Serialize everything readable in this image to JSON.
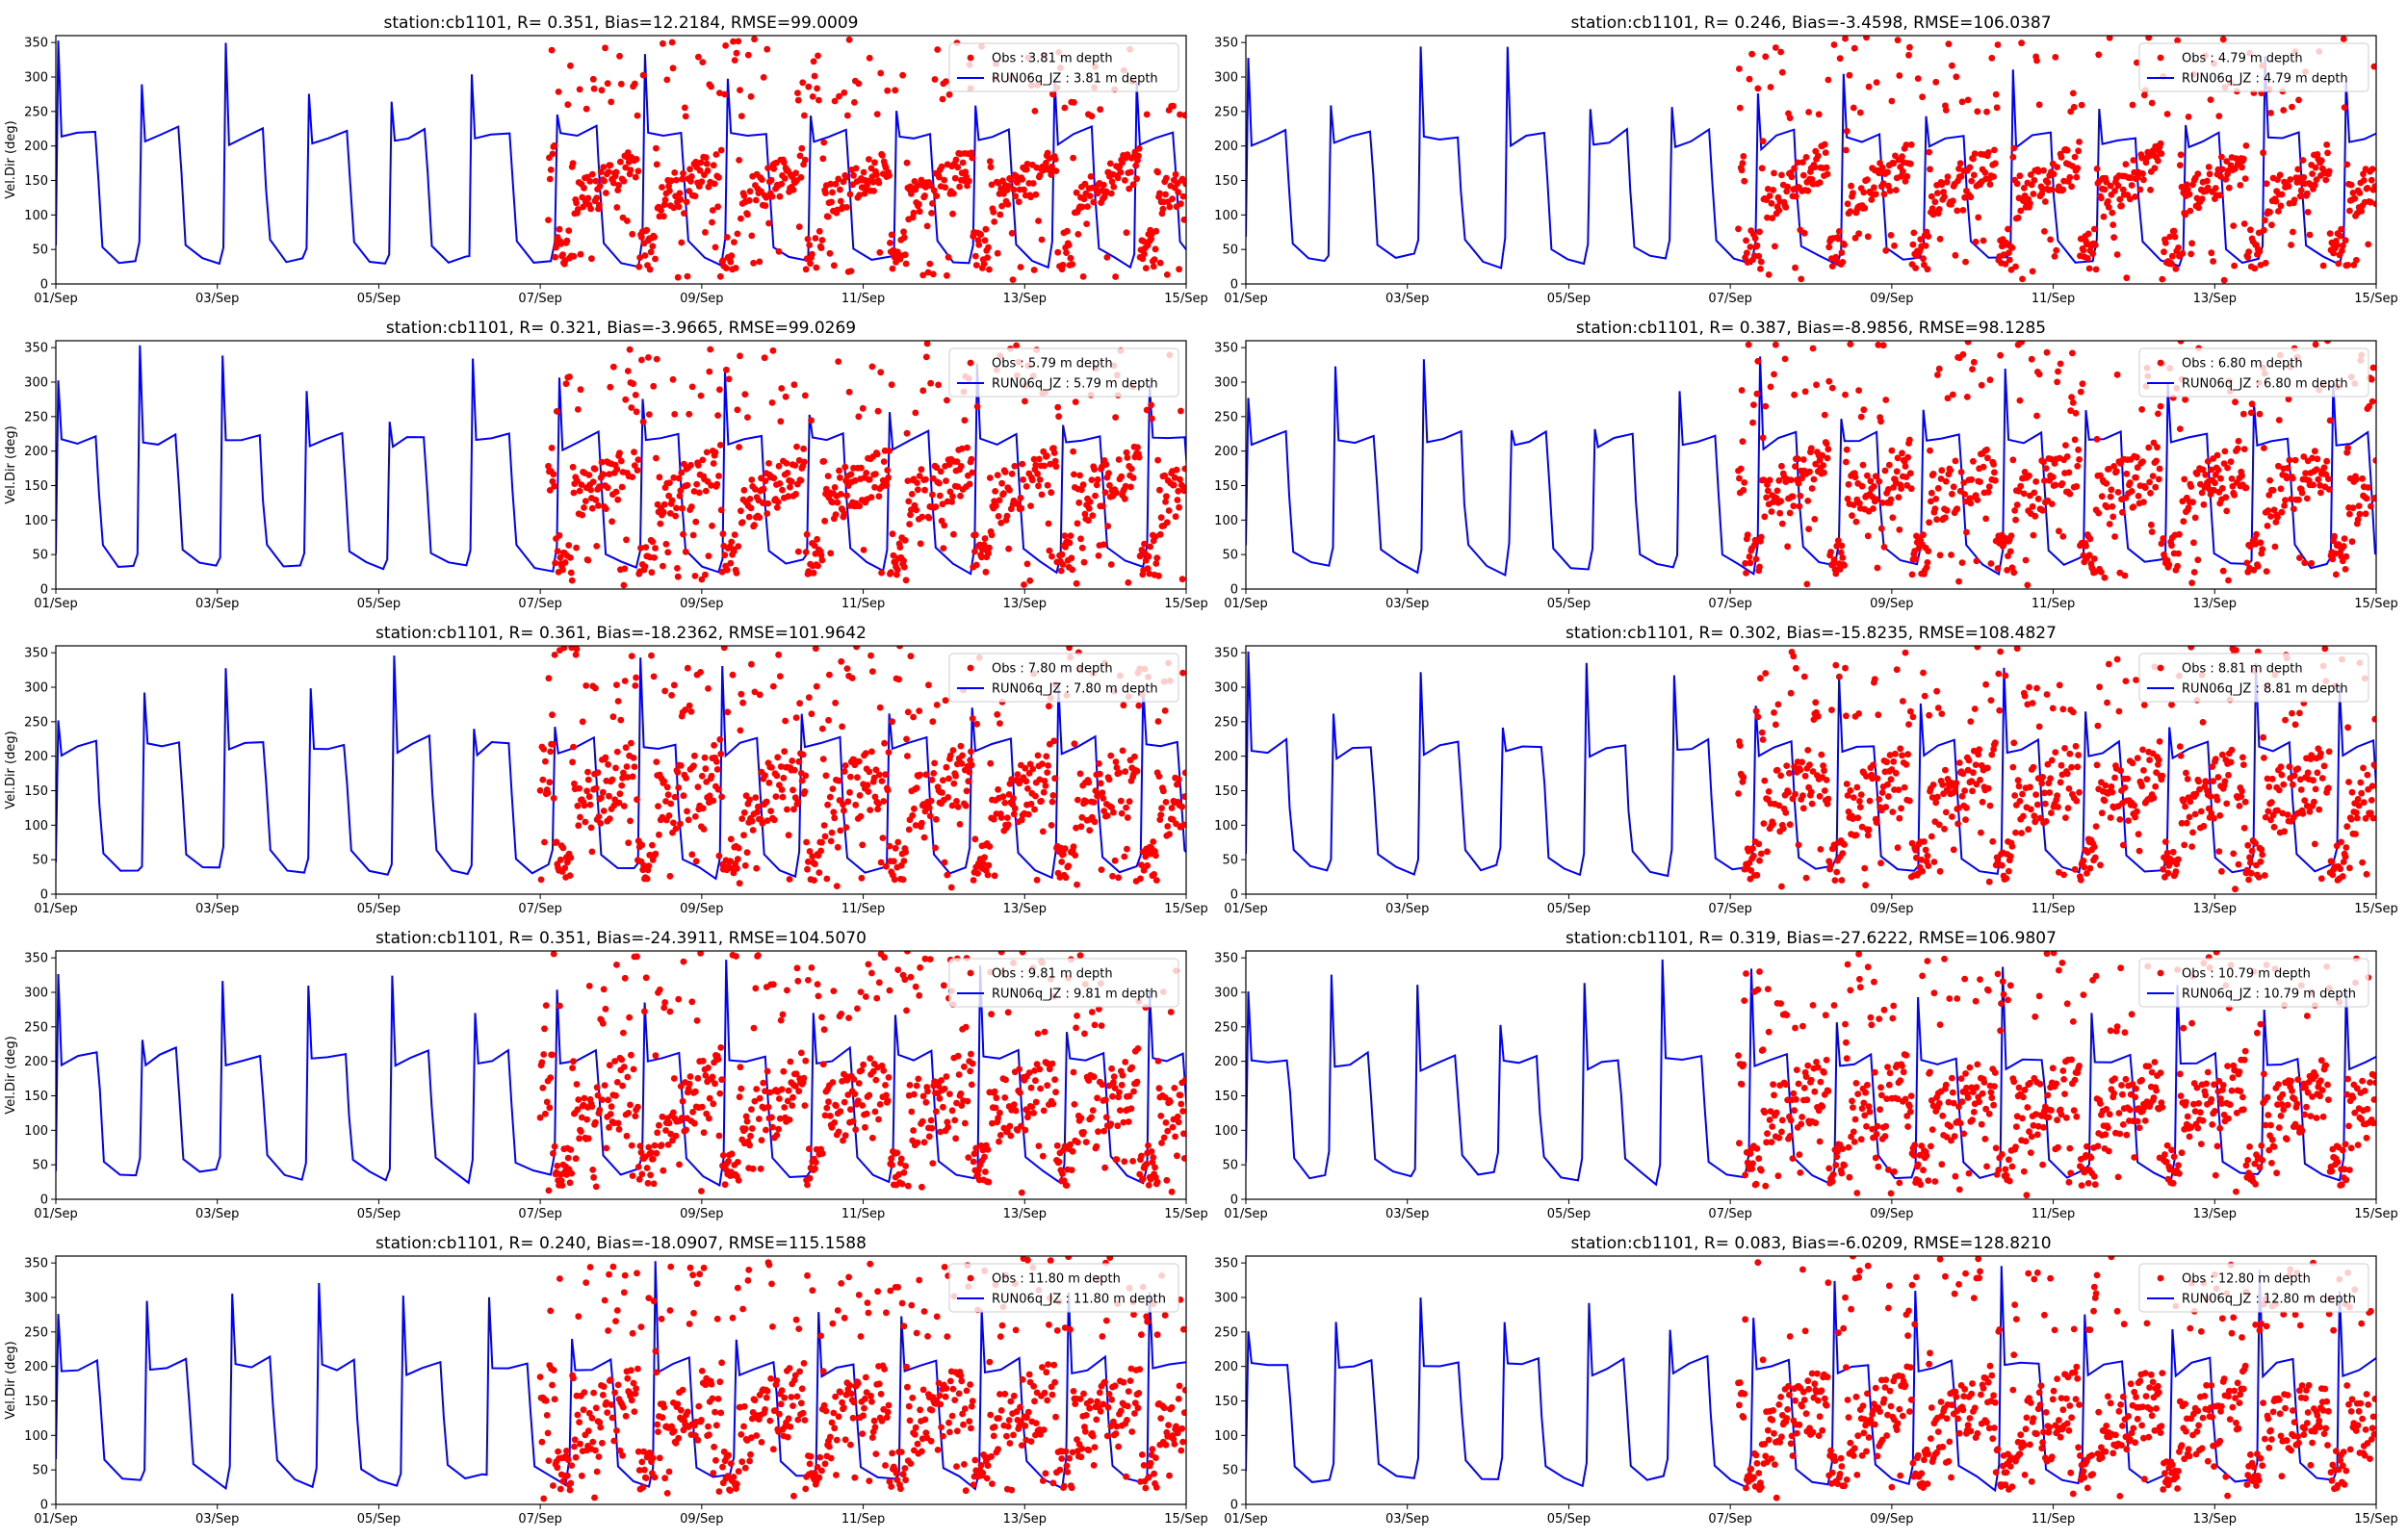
{
  "figure": {
    "obs_color": "#ff0000",
    "model_color": "#0000ff",
    "grid": false,
    "legend_placement": "upper-right"
  },
  "chart_data": [
    {
      "type": "line",
      "title": "station:cb1101, R= 0.351, Bias=12.2184, RMSE=99.0009",
      "ylabel": "Vel.Dir (deg)",
      "xlabel": "",
      "ylim": [
        0,
        360
      ],
      "yticks": [
        0,
        50,
        100,
        150,
        200,
        250,
        300,
        350
      ],
      "xlim": [
        "2021-09-01",
        "2021-09-15"
      ],
      "xticks": [
        "01/Sep",
        "03/Sep",
        "05/Sep",
        "07/Sep",
        "09/Sep",
        "11/Sep",
        "13/Sep",
        "15/Sep"
      ],
      "obs_start_day": 6.1,
      "obs_band": [
        135,
        160
      ],
      "model_plateau": 215,
      "series": [
        {
          "name": "Obs : 3.81 m depth",
          "kind": "scatter",
          "color": "#ff0000"
        },
        {
          "name": "RUN06q_JZ : 3.81 m depth",
          "kind": "line",
          "color": "#0000ff"
        }
      ]
    },
    {
      "type": "line",
      "title": "station:cb1101, R= 0.246, Bias=-3.4598, RMSE=106.0387",
      "ylabel": "",
      "xlabel": "",
      "ylim": [
        0,
        360
      ],
      "yticks": [
        0,
        50,
        100,
        150,
        200,
        250,
        300,
        350
      ],
      "xlim": [
        "2021-09-01",
        "2021-09-15"
      ],
      "xticks": [
        "01/Sep",
        "03/Sep",
        "05/Sep",
        "07/Sep",
        "09/Sep",
        "11/Sep",
        "13/Sep",
        "15/Sep"
      ],
      "obs_start_day": 6.1,
      "obs_band": [
        135,
        165
      ],
      "model_plateau": 210,
      "series": [
        {
          "name": "Obs : 4.79 m depth",
          "kind": "scatter",
          "color": "#ff0000"
        },
        {
          "name": "RUN06q_JZ : 4.79 m depth",
          "kind": "line",
          "color": "#0000ff"
        }
      ]
    },
    {
      "type": "line",
      "title": "station:cb1101, R= 0.321, Bias=-3.9665, RMSE=99.0269",
      "ylabel": "Vel.Dir (deg)",
      "xlabel": "",
      "ylim": [
        0,
        360
      ],
      "yticks": [
        0,
        50,
        100,
        150,
        200,
        250,
        300,
        350
      ],
      "xlim": [
        "2021-09-01",
        "2021-09-15"
      ],
      "xticks": [
        "01/Sep",
        "03/Sep",
        "05/Sep",
        "07/Sep",
        "09/Sep",
        "11/Sep",
        "13/Sep",
        "15/Sep"
      ],
      "obs_start_day": 6.1,
      "obs_band": [
        130,
        175
      ],
      "model_plateau": 215,
      "series": [
        {
          "name": "Obs : 5.79 m depth",
          "kind": "scatter",
          "color": "#ff0000"
        },
        {
          "name": "RUN06q_JZ : 5.79 m depth",
          "kind": "line",
          "color": "#0000ff"
        }
      ]
    },
    {
      "type": "line",
      "title": "station:cb1101, R= 0.387, Bias=-8.9856, RMSE=98.1285",
      "ylabel": "",
      "xlabel": "",
      "ylim": [
        0,
        360
      ],
      "yticks": [
        0,
        50,
        100,
        150,
        200,
        250,
        300,
        350
      ],
      "xlim": [
        "2021-09-01",
        "2021-09-15"
      ],
      "xticks": [
        "01/Sep",
        "03/Sep",
        "05/Sep",
        "07/Sep",
        "09/Sep",
        "11/Sep",
        "13/Sep",
        "15/Sep"
      ],
      "obs_start_day": 6.1,
      "obs_band": [
        130,
        180
      ],
      "model_plateau": 215,
      "series": [
        {
          "name": "Obs : 6.80 m depth",
          "kind": "scatter",
          "color": "#ff0000"
        },
        {
          "name": "RUN06q_JZ : 6.80 m depth",
          "kind": "line",
          "color": "#0000ff"
        }
      ]
    },
    {
      "type": "line",
      "title": "station:cb1101, R= 0.361, Bias=-18.2362, RMSE=101.9642",
      "ylabel": "Vel.Dir (deg)",
      "xlabel": "",
      "ylim": [
        0,
        360
      ],
      "yticks": [
        0,
        50,
        100,
        150,
        200,
        250,
        300,
        350
      ],
      "xlim": [
        "2021-09-01",
        "2021-09-15"
      ],
      "xticks": [
        "01/Sep",
        "03/Sep",
        "05/Sep",
        "07/Sep",
        "09/Sep",
        "11/Sep",
        "13/Sep",
        "15/Sep"
      ],
      "obs_start_day": 6.0,
      "obs_band": [
        120,
        185
      ],
      "model_plateau": 215,
      "series": [
        {
          "name": "Obs : 7.80 m depth",
          "kind": "scatter",
          "color": "#ff0000"
        },
        {
          "name": "RUN06q_JZ : 7.80 m depth",
          "kind": "line",
          "color": "#0000ff"
        }
      ]
    },
    {
      "type": "line",
      "title": "station:cb1101, R= 0.302, Bias=-15.8235, RMSE=108.4827",
      "ylabel": "",
      "xlabel": "",
      "ylim": [
        0,
        360
      ],
      "yticks": [
        0,
        50,
        100,
        150,
        200,
        250,
        300,
        350
      ],
      "xlim": [
        "2021-09-01",
        "2021-09-15"
      ],
      "xticks": [
        "01/Sep",
        "03/Sep",
        "05/Sep",
        "07/Sep",
        "09/Sep",
        "11/Sep",
        "13/Sep",
        "15/Sep"
      ],
      "obs_start_day": 6.1,
      "obs_band": [
        120,
        185
      ],
      "model_plateau": 210,
      "series": [
        {
          "name": "Obs : 8.81 m depth",
          "kind": "scatter",
          "color": "#ff0000"
        },
        {
          "name": "RUN06q_JZ : 8.81 m depth",
          "kind": "line",
          "color": "#0000ff"
        }
      ]
    },
    {
      "type": "line",
      "title": "station:cb1101, R= 0.351, Bias=-24.3911, RMSE=104.5070",
      "ylabel": "Vel.Dir (deg)",
      "xlabel": "",
      "ylim": [
        0,
        360
      ],
      "yticks": [
        0,
        50,
        100,
        150,
        200,
        250,
        300,
        350
      ],
      "xlim": [
        "2021-09-01",
        "2021-09-15"
      ],
      "xticks": [
        "01/Sep",
        "03/Sep",
        "05/Sep",
        "07/Sep",
        "09/Sep",
        "11/Sep",
        "13/Sep",
        "15/Sep"
      ],
      "obs_start_day": 6.0,
      "obs_band": [
        110,
        180
      ],
      "model_plateau": 205,
      "series": [
        {
          "name": "Obs : 9.81 m depth",
          "kind": "scatter",
          "color": "#ff0000"
        },
        {
          "name": "RUN06q_JZ : 9.81 m depth",
          "kind": "line",
          "color": "#0000ff"
        }
      ]
    },
    {
      "type": "line",
      "title": "station:cb1101, R= 0.319, Bias=-27.6222, RMSE=106.9807",
      "ylabel": "",
      "xlabel": "",
      "ylim": [
        0,
        360
      ],
      "yticks": [
        0,
        50,
        100,
        150,
        200,
        250,
        300,
        350
      ],
      "xlim": [
        "2021-09-01",
        "2021-09-15"
      ],
      "xticks": [
        "01/Sep",
        "03/Sep",
        "05/Sep",
        "07/Sep",
        "09/Sep",
        "11/Sep",
        "13/Sep",
        "15/Sep"
      ],
      "obs_start_day": 6.1,
      "obs_band": [
        110,
        175
      ],
      "model_plateau": 200,
      "series": [
        {
          "name": "Obs : 10.79 m depth",
          "kind": "scatter",
          "color": "#ff0000"
        },
        {
          "name": "RUN06q_JZ : 10.79 m depth",
          "kind": "line",
          "color": "#0000ff"
        }
      ]
    },
    {
      "type": "line",
      "title": "station:cb1101, R= 0.240, Bias=-18.0907, RMSE=115.1588",
      "ylabel": "Vel.Dir (deg)",
      "xlabel": "",
      "ylim": [
        0,
        360
      ],
      "yticks": [
        0,
        50,
        100,
        150,
        200,
        250,
        300,
        350
      ],
      "xlim": [
        "2021-09-01",
        "2021-09-15"
      ],
      "xticks": [
        "01/Sep",
        "03/Sep",
        "05/Sep",
        "07/Sep",
        "09/Sep",
        "11/Sep",
        "13/Sep",
        "15/Sep"
      ],
      "obs_start_day": 6.0,
      "obs_band": [
        100,
        170
      ],
      "model_plateau": 200,
      "series": [
        {
          "name": "Obs : 11.80 m depth",
          "kind": "scatter",
          "color": "#ff0000"
        },
        {
          "name": "RUN06q_JZ : 11.80 m depth",
          "kind": "line",
          "color": "#0000ff"
        }
      ]
    },
    {
      "type": "line",
      "title": "station:cb1101, R= 0.083, Bias=-6.0209, RMSE=128.8210",
      "ylabel": "",
      "xlabel": "",
      "ylim": [
        0,
        360
      ],
      "yticks": [
        0,
        50,
        100,
        150,
        200,
        250,
        300,
        350
      ],
      "xlim": [
        "2021-09-01",
        "2021-09-15"
      ],
      "xticks": [
        "01/Sep",
        "03/Sep",
        "05/Sep",
        "07/Sep",
        "09/Sep",
        "11/Sep",
        "13/Sep",
        "15/Sep"
      ],
      "obs_start_day": 6.1,
      "obs_band": [
        100,
        165
      ],
      "model_plateau": 200,
      "series": [
        {
          "name": "Obs : 12.80 m depth",
          "kind": "scatter",
          "color": "#ff0000"
        },
        {
          "name": "RUN06q_JZ : 12.80 m depth",
          "kind": "line",
          "color": "#0000ff"
        }
      ]
    }
  ]
}
